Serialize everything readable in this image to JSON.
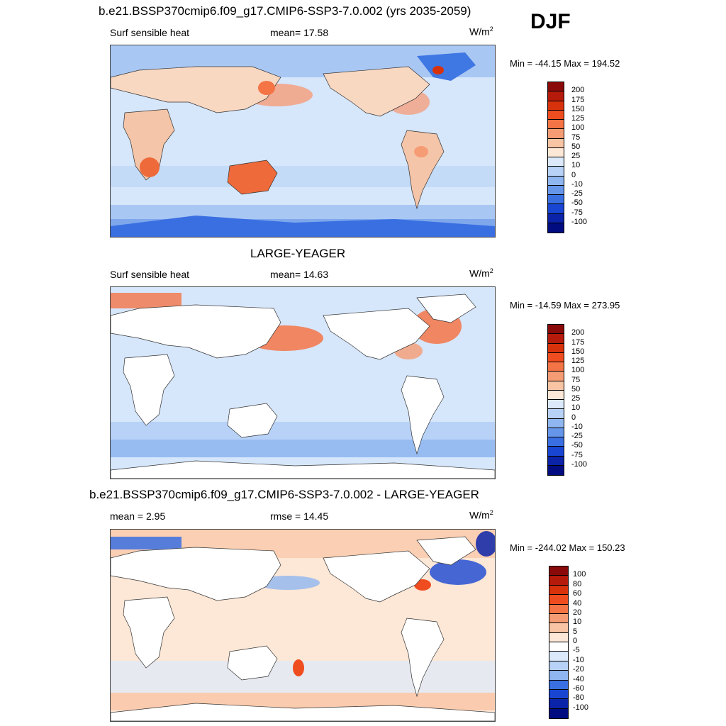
{
  "season": "DJF",
  "panels": [
    {
      "title": "b.e21.BSSP370cmip6.f09_g17.CMIP6-SSP3-7.0.002 (yrs 2035-2059)",
      "left_label": "Surf sensible heat",
      "center_label": "mean=  17.58",
      "units": "W/m",
      "units_sup": "2",
      "minmax": "Min = -44.15 Max = 194.52",
      "colorbar_levels": [
        "200",
        "175",
        "150",
        "125",
        "100",
        "75",
        "50",
        "25",
        "10",
        "0",
        "-10",
        "-25",
        "-50",
        "-75",
        "-100"
      ],
      "colorbar_colors": [
        "#8a0a0a",
        "#b51a0a",
        "#d8320c",
        "#ef4d1f",
        "#f47446",
        "#f69c74",
        "#f9c4a4",
        "#fde7d6",
        "#dbe9fb",
        "#b8d2f7",
        "#8fb6f0",
        "#6696ea",
        "#3a6fe2",
        "#1846d3",
        "#0a23a8",
        "#000c80"
      ],
      "land_fill": "#f4c5a8"
    },
    {
      "title": "LARGE-YEAGER",
      "left_label": "Surf sensible heat",
      "center_label": "mean=  14.63",
      "units": "W/m",
      "units_sup": "2",
      "minmax": "Min = -14.59 Max = 273.95",
      "colorbar_levels": [
        "200",
        "175",
        "150",
        "125",
        "100",
        "75",
        "50",
        "25",
        "10",
        "0",
        "-10",
        "-25",
        "-50",
        "-75",
        "-100"
      ],
      "colorbar_colors": [
        "#8a0a0a",
        "#b51a0a",
        "#d8320c",
        "#ef4d1f",
        "#f47446",
        "#f69c74",
        "#f9c4a4",
        "#fde7d6",
        "#dbe9fb",
        "#b8d2f7",
        "#8fb6f0",
        "#6696ea",
        "#3a6fe2",
        "#1846d3",
        "#0a23a8",
        "#000c80"
      ],
      "land_fill": "#ffffff"
    },
    {
      "title": "b.e21.BSSP370cmip6.f09_g17.CMIP6-SSP3-7.0.002 - LARGE-YEAGER",
      "left_label": "mean =   2.95",
      "center_label": "rmse =  14.45",
      "units": "W/m",
      "units_sup": "2",
      "minmax": "Min = -244.02 Max = 150.23",
      "colorbar_levels": [
        "100",
        "80",
        "60",
        "40",
        "20",
        "10",
        "5",
        "0",
        "-5",
        "-10",
        "-20",
        "-40",
        "-60",
        "-80",
        "-100"
      ],
      "colorbar_colors": [
        "#8a0a0a",
        "#b51a0a",
        "#d8320c",
        "#ef4d1f",
        "#f47446",
        "#f69c74",
        "#f9c4a4",
        "#fde7d6",
        "#ffffff",
        "#dbe9fb",
        "#b8d2f7",
        "#8fb6f0",
        "#3a6fe2",
        "#1846d3",
        "#0a23a8",
        "#000c80"
      ],
      "land_fill": "#ffffff"
    }
  ]
}
